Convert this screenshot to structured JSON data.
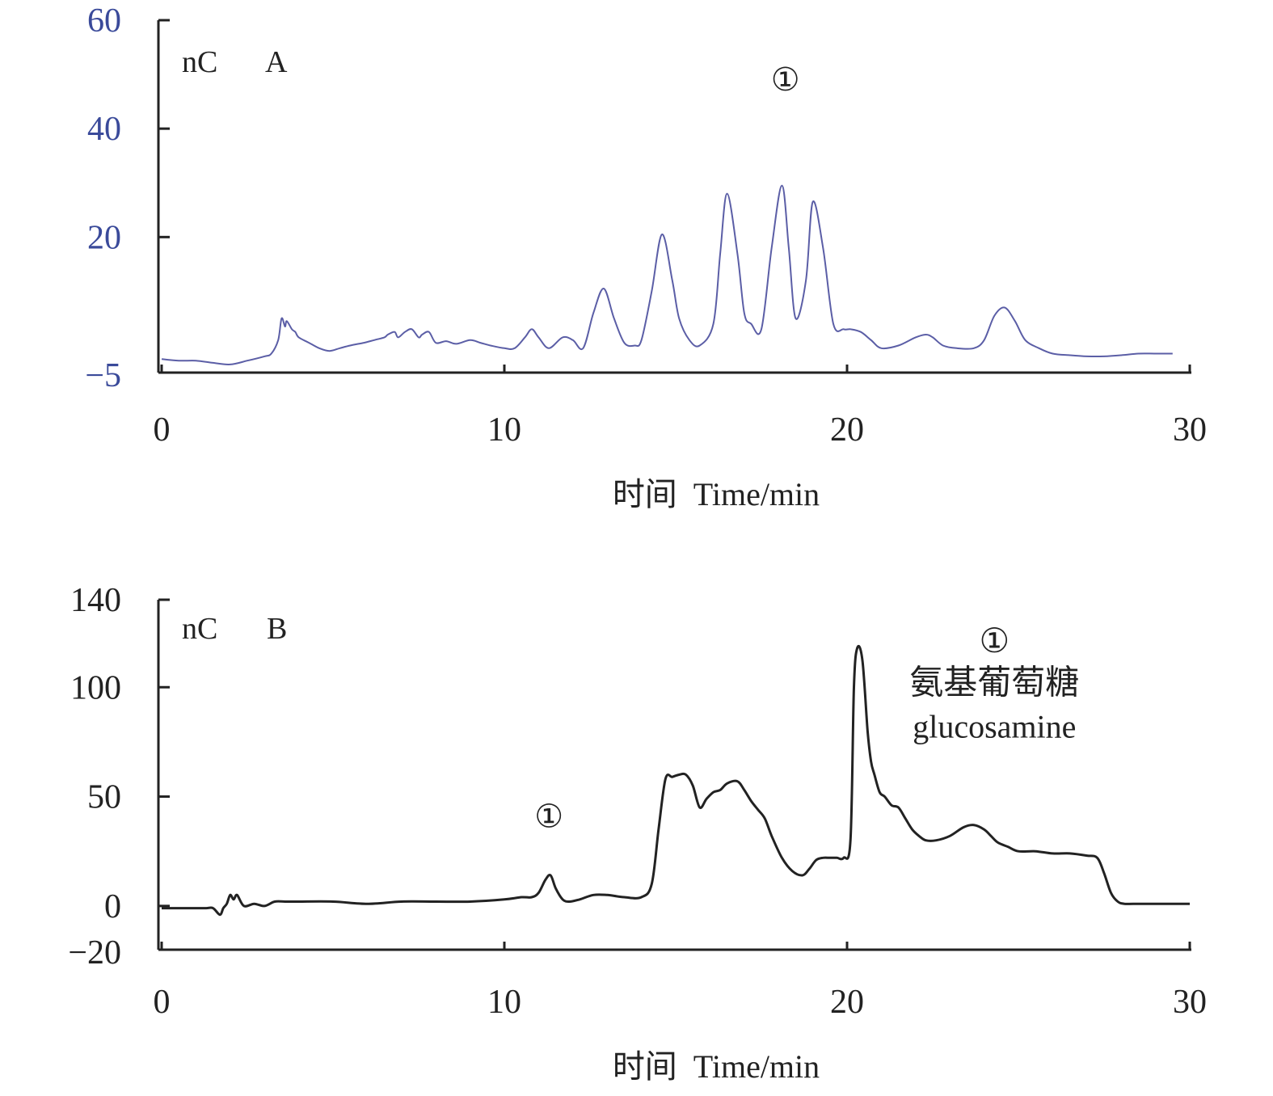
{
  "chart_data": [
    {
      "panel": "A",
      "type": "line",
      "unit_label": "nC",
      "panel_label": "A",
      "xlabel": "时间  Time/min",
      "ylabel": "",
      "xlim": [
        0,
        30
      ],
      "ylim": [
        -5,
        60
      ],
      "x_ticks": [
        0,
        10,
        20,
        30
      ],
      "y_ticks": [
        -5,
        20,
        40,
        60
      ],
      "y_tick_labels": [
        "−5",
        "20",
        "40",
        "60"
      ],
      "grid": false,
      "colors": {
        "line": "#5b5ea6",
        "y_tick_labels": "#3a4a9a"
      },
      "annotations": [
        {
          "text": "①",
          "x": 18.2,
          "y": 47
        }
      ],
      "series": [
        {
          "x": [
            0,
            0.5,
            1,
            1.5,
            2,
            2.5,
            3,
            3.2,
            3.4,
            3.5,
            3.6,
            3.65,
            3.8,
            3.9,
            4.0,
            4.3,
            4.6,
            4.9,
            5.2,
            5.5,
            5.9,
            6.2,
            6.5,
            6.6,
            6.8,
            6.9,
            7.1,
            7.3,
            7.5,
            7.6,
            7.8,
            8.0,
            8.3,
            8.6,
            9.0,
            9.3,
            9.6,
            10.0,
            10.3,
            10.6,
            10.8,
            11.0,
            11.3,
            11.7,
            12.0,
            12.3,
            12.6,
            12.9,
            13.2,
            13.5,
            13.8,
            14.0,
            14.3,
            14.6,
            14.9,
            15.1,
            15.4,
            15.7,
            16.1,
            16.3,
            16.5,
            16.8,
            17.0,
            17.2,
            17.5,
            17.8,
            18.1,
            18.3,
            18.5,
            18.8,
            19.0,
            19.3,
            19.6,
            19.9,
            20.1,
            20.4,
            20.7,
            21.0,
            21.5,
            22.0,
            22.3,
            22.5,
            22.8,
            23.2,
            23.7,
            24.0,
            24.3,
            24.6,
            24.9,
            25.2,
            25.6,
            26.0,
            26.5,
            27.0,
            27.5,
            28.0,
            28.5,
            29.0,
            29.5
          ],
          "y": [
            -2.5,
            -2.8,
            -2.8,
            -3.2,
            -3.5,
            -2.8,
            -2.0,
            -1.5,
            1.0,
            5.0,
            3.5,
            4.5,
            3.0,
            2.5,
            1.5,
            0.5,
            -0.5,
            -1.0,
            -0.5,
            0.0,
            0.5,
            1.0,
            1.5,
            2.0,
            2.5,
            1.5,
            2.5,
            3.0,
            1.5,
            2.0,
            2.5,
            0.5,
            0.8,
            0.3,
            1.0,
            0.5,
            0.0,
            -0.5,
            -0.5,
            1.5,
            3.0,
            1.5,
            -0.5,
            1.5,
            1.0,
            -0.5,
            6.0,
            10.5,
            5.0,
            0.5,
            0.0,
            1.0,
            10.0,
            20.5,
            12.0,
            5.0,
            1.0,
            0.0,
            4.0,
            17.0,
            28.0,
            17.0,
            6.0,
            4.0,
            3.0,
            18.0,
            29.5,
            18.0,
            5.0,
            12.0,
            26.5,
            18.0,
            4.0,
            3.0,
            3.0,
            2.5,
            1.0,
            -0.5,
            0.0,
            1.5,
            2.0,
            1.5,
            0.0,
            -0.5,
            -0.5,
            1.0,
            5.5,
            7.0,
            4.5,
            1.0,
            -0.5,
            -1.5,
            -1.8,
            -2.0,
            -2.0,
            -1.8,
            -1.5,
            -1.5,
            -1.5
          ]
        }
      ]
    },
    {
      "panel": "B",
      "type": "line",
      "unit_label": "nC",
      "panel_label": "B",
      "xlabel": "时间  Time/min",
      "ylabel": "",
      "xlim": [
        0,
        30
      ],
      "ylim": [
        -20,
        140
      ],
      "x_ticks": [
        0,
        10,
        20,
        30
      ],
      "y_ticks": [
        -20,
        0,
        50,
        100,
        140
      ],
      "y_tick_labels": [
        "−20",
        "0",
        "50",
        "100",
        "140"
      ],
      "grid": false,
      "colors": {
        "line": "#222222",
        "y_tick_labels": "#222222"
      },
      "annotations": [
        {
          "text": "①",
          "x": 11.3,
          "y": 36
        },
        {
          "text": "①",
          "x": 24.3,
          "y": 116
        },
        {
          "text": "氨基葡萄糖",
          "x": 24.3,
          "y": 97
        },
        {
          "text": "glucosamine",
          "x": 24.3,
          "y": 77
        }
      ],
      "series": [
        {
          "x": [
            0,
            0.5,
            1.0,
            1.3,
            1.5,
            1.7,
            1.8,
            1.9,
            2.0,
            2.1,
            2.2,
            2.4,
            2.7,
            3.0,
            3.3,
            3.6,
            4.0,
            5.0,
            6.0,
            7.0,
            8.0,
            9.0,
            10.0,
            10.5,
            10.8,
            11.0,
            11.2,
            11.35,
            11.5,
            11.7,
            11.9,
            12.2,
            12.6,
            13.0,
            13.5,
            14.0,
            14.3,
            14.5,
            14.7,
            14.9,
            15.1,
            15.3,
            15.5,
            15.7,
            15.9,
            16.1,
            16.3,
            16.5,
            16.8,
            17.0,
            17.2,
            17.4,
            17.6,
            17.8,
            18.1,
            18.4,
            18.7,
            18.9,
            19.1,
            19.3,
            19.5,
            19.7,
            19.9,
            20.1,
            20.2,
            20.3,
            20.45,
            20.6,
            20.7,
            20.8,
            20.95,
            21.1,
            21.3,
            21.5,
            21.7,
            21.9,
            22.1,
            22.3,
            22.6,
            23.0,
            23.4,
            23.7,
            24.0,
            24.2,
            24.4,
            24.7,
            25.0,
            25.5,
            26.0,
            26.5,
            27.0,
            27.3,
            27.5,
            27.7,
            27.9,
            28.1,
            28.5,
            29.0,
            29.5,
            30.0
          ],
          "y": [
            -1,
            -1,
            -1,
            -1,
            -1,
            -4,
            -1,
            1,
            5,
            3,
            5,
            0,
            1,
            0,
            2,
            2,
            2,
            2,
            1,
            2,
            2,
            2,
            3,
            4,
            4,
            6,
            12,
            14,
            8,
            3,
            2,
            3,
            5,
            5,
            4,
            4,
            10,
            35,
            58,
            59,
            60,
            60,
            55,
            45,
            49,
            52,
            53,
            56,
            57,
            53,
            48,
            44,
            40,
            32,
            22,
            16,
            14,
            17,
            21,
            22,
            22,
            22,
            22,
            30,
            100,
            118,
            112,
            80,
            66,
            60,
            52,
            50,
            46,
            45,
            40,
            35,
            32,
            30,
            30,
            32,
            36,
            37,
            35,
            32,
            29,
            27,
            25,
            25,
            24,
            24,
            23,
            22,
            15,
            6,
            2,
            1,
            1,
            1,
            1,
            1
          ]
        }
      ]
    }
  ]
}
